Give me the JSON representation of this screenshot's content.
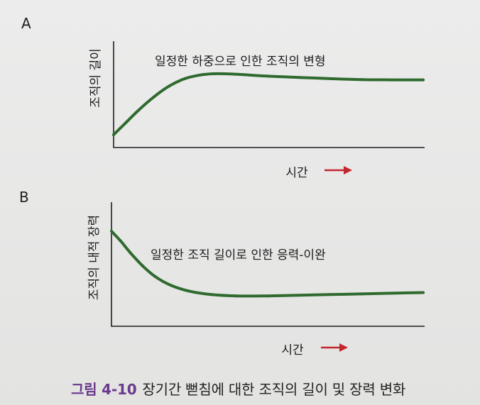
{
  "colors": {
    "curve": "#2f6a2e",
    "arrow": "#c4262e",
    "axis": "#1f1f1f",
    "caption_number": "#6a3a8c"
  },
  "chart_data": [
    {
      "type": "line",
      "panel_label": "A",
      "title": "",
      "annotation": "일정한 하중으로 인한 조직의 변형",
      "xlabel": "시간",
      "ylabel": "조직의 길이",
      "x_axis_arrow": "right-arrow",
      "ticks": "none",
      "grid": false,
      "legend": "none",
      "x": [
        0,
        0.04,
        0.08,
        0.13,
        0.18,
        0.23,
        0.28,
        0.32,
        0.36,
        0.42,
        0.5,
        0.6,
        0.7,
        0.8,
        0.9,
        1.0
      ],
      "y": [
        0.0,
        0.2,
        0.4,
        0.62,
        0.8,
        0.92,
        0.98,
        1.0,
        1.0,
        0.985,
        0.96,
        0.94,
        0.92,
        0.905,
        0.9,
        0.9
      ]
    },
    {
      "type": "line",
      "panel_label": "B",
      "title": "",
      "annotation": "일정한 조직 길이로 인한 응력-이완",
      "xlabel": "시간",
      "ylabel": "조직의 내적 장력",
      "x_axis_arrow": "right-arrow",
      "ticks": "none",
      "grid": false,
      "legend": "none",
      "x": [
        0,
        0.03,
        0.06,
        0.1,
        0.14,
        0.19,
        0.25,
        0.32,
        0.4,
        0.5,
        0.6,
        0.7,
        0.8,
        0.9,
        1.0
      ],
      "y": [
        1.0,
        0.85,
        0.68,
        0.48,
        0.32,
        0.19,
        0.1,
        0.05,
        0.03,
        0.03,
        0.04,
        0.05,
        0.06,
        0.07,
        0.08
      ]
    }
  ],
  "caption": {
    "number": "그림 4-10",
    "text": "장기간 뻗침에 대한 조직의 길이 및 장력 변화"
  }
}
